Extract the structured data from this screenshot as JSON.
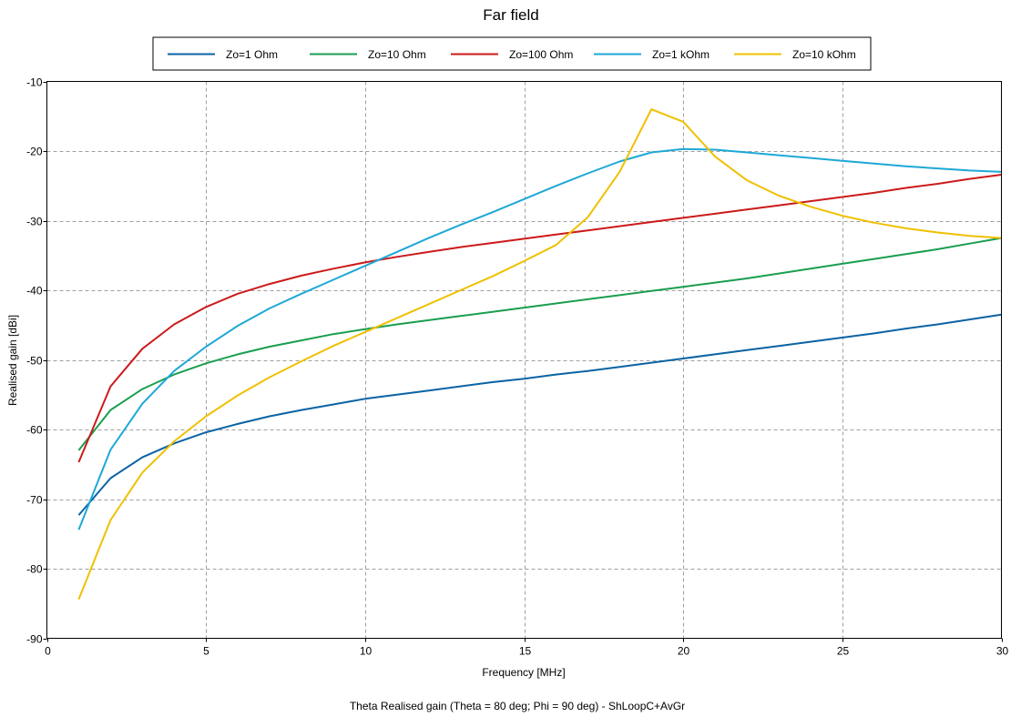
{
  "chart_data": {
    "type": "line",
    "title": "Far field",
    "xlabel": "Frequency [MHz]",
    "ylabel": "Realised gain [dBi]",
    "footer": "Theta Realised gain (Theta = 80 deg; Phi = 90 deg) - ShLoopC+AvGr",
    "xlim": [
      0,
      30
    ],
    "ylim": [
      -90,
      -10
    ],
    "xticks": [
      0,
      5,
      10,
      15,
      20,
      25,
      30
    ],
    "yticks": [
      -10,
      -20,
      -30,
      -40,
      -50,
      -60,
      -70,
      -80,
      -90
    ],
    "xtick_labels": [
      "0",
      "5",
      "10",
      "15",
      "20",
      "25",
      "30"
    ],
    "ytick_labels": [
      "-10",
      "-20",
      "-30",
      "-40",
      "-50",
      "-60",
      "-70",
      "-80",
      "-90"
    ],
    "grid": true,
    "legend_position": "top-center",
    "x": [
      1,
      2,
      3,
      4,
      5,
      6,
      7,
      8,
      9,
      10,
      11,
      12,
      13,
      14,
      15,
      16,
      17,
      18,
      19,
      20,
      21,
      22,
      23,
      24,
      25,
      26,
      27,
      28,
      29,
      30
    ],
    "series": [
      {
        "name": "Zo=1 Ohm",
        "color": "#0a63a4",
        "values": [
          -72.3,
          -67.0,
          -64.0,
          -62.0,
          -60.4,
          -59.2,
          -58.1,
          -57.2,
          -56.4,
          -55.6,
          -55.0,
          -54.4,
          -53.8,
          -53.2,
          -52.7,
          -52.1,
          -51.6,
          -51.0,
          -50.4,
          -49.8,
          -49.2,
          -48.6,
          -48.0,
          -47.4,
          -46.8,
          -46.2,
          -45.5,
          -44.9,
          -44.2,
          -43.5
        ]
      },
      {
        "name": "Zo=10 Ohm",
        "color": "#1a9e4f",
        "values": [
          -63.0,
          -57.2,
          -54.2,
          -52.1,
          -50.5,
          -49.2,
          -48.1,
          -47.2,
          -46.3,
          -45.6,
          -44.9,
          -44.3,
          -43.7,
          -43.1,
          -42.5,
          -41.9,
          -41.3,
          -40.7,
          -40.1,
          -39.5,
          -38.9,
          -38.3,
          -37.6,
          -36.9,
          -36.2,
          -35.5,
          -34.8,
          -34.1,
          -33.3,
          -32.5
        ]
      },
      {
        "name": "Zo=100 Ohm",
        "color": "#cc1a1a",
        "values": [
          -64.7,
          -53.8,
          -48.4,
          -44.9,
          -42.4,
          -40.5,
          -39.1,
          -37.9,
          -36.9,
          -36.0,
          -35.2,
          -34.5,
          -33.8,
          -33.2,
          -32.6,
          -32.0,
          -31.4,
          -30.8,
          -30.2,
          -29.6,
          -29.0,
          -28.4,
          -27.8,
          -27.2,
          -26.6,
          -26.0,
          -25.3,
          -24.7,
          -24.0,
          -23.4
        ]
      },
      {
        "name": "Zo=1 kOhm",
        "color": "#1ea8d6",
        "values": [
          -74.4,
          -62.9,
          -56.3,
          -51.6,
          -48.1,
          -45.1,
          -42.6,
          -40.5,
          -38.5,
          -36.5,
          -34.5,
          -32.5,
          -30.6,
          -28.8,
          -26.9,
          -25.0,
          -23.2,
          -21.5,
          -20.2,
          -19.7,
          -19.8,
          -20.2,
          -20.6,
          -21.0,
          -21.4,
          -21.8,
          -22.2,
          -22.5,
          -22.8,
          -23.0
        ]
      },
      {
        "name": "Zo=10 kOhm",
        "color": "#f0c000",
        "values": [
          -84.4,
          -73.0,
          -66.2,
          -61.7,
          -58.1,
          -55.1,
          -52.5,
          -50.2,
          -48.0,
          -46.0,
          -44.0,
          -42.0,
          -40.0,
          -38.0,
          -35.8,
          -33.5,
          -29.5,
          -23.0,
          -14.0,
          -15.8,
          -20.8,
          -24.2,
          -26.4,
          -28.0,
          -29.3,
          -30.3,
          -31.1,
          -31.7,
          -32.2,
          -32.5
        ]
      }
    ]
  }
}
